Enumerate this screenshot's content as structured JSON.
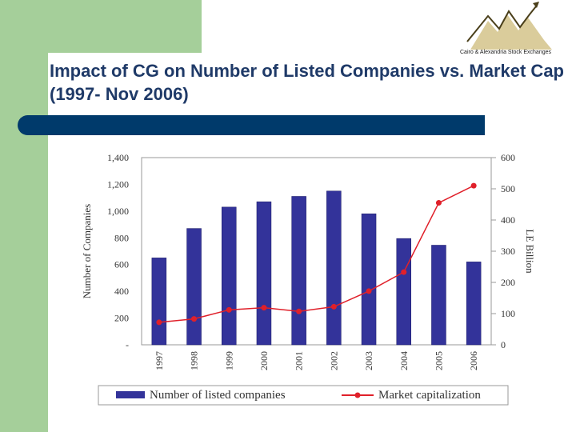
{
  "slide": {
    "title": "Impact of CG on Number of Listed Companies vs. Market Cap (1997- Nov 2006)",
    "logo_text": "Cairo & Alexandria Stock Exchanges"
  },
  "colors": {
    "bar": "#33339a",
    "line": "#e0202a",
    "sidebar": "#a5cf9a",
    "divider": "#003a6b",
    "title": "#1f3a68"
  },
  "chart_data": {
    "type": "bar",
    "categories": [
      "1997",
      "1998",
      "1999",
      "2000",
      "2001",
      "2002",
      "2003",
      "2004",
      "2005",
      "2006"
    ],
    "series": [
      {
        "name": "Number of listed companies",
        "type": "bar",
        "axis": "left",
        "values": [
          650,
          870,
          1030,
          1070,
          1110,
          1150,
          980,
          795,
          745,
          620
        ]
      },
      {
        "name": "Market capitalization",
        "type": "line",
        "axis": "right",
        "values": [
          72,
          83,
          112,
          119,
          107,
          122,
          172,
          233,
          455,
          510
        ]
      }
    ],
    "y_left": {
      "label": "Number of Companies",
      "min": 0,
      "max": 1400,
      "ticks": [
        "-",
        "200",
        "400",
        "600",
        "800",
        "1,000",
        "1,200",
        "1,400"
      ]
    },
    "y_right": {
      "label": "LE Billion",
      "min": 0,
      "max": 600,
      "ticks": [
        "0",
        "100",
        "200",
        "300",
        "400",
        "500",
        "600"
      ]
    },
    "grid": false,
    "legend_position": "bottom"
  }
}
